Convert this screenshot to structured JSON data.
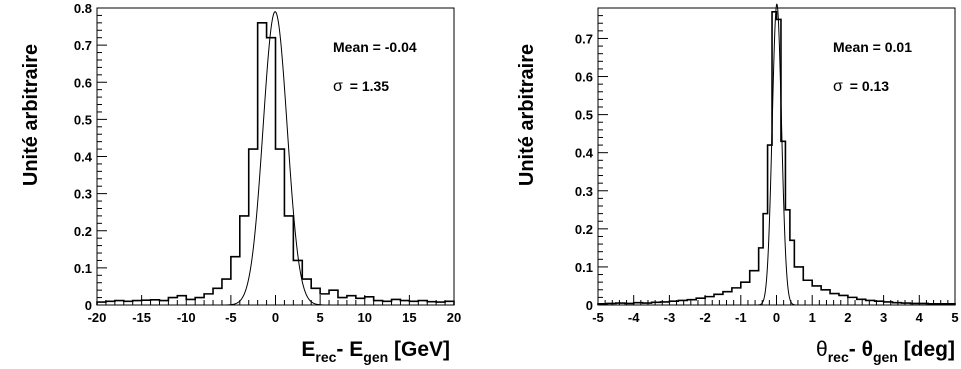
{
  "chart_data": [
    {
      "type": "histogram",
      "ylabel": "Unité arbitraire",
      "xlabel": {
        "main1": "E",
        "sub1": "rec",
        "mid": "- E",
        "sub2": "gen",
        "tail": " [GeV]"
      },
      "xlim": [
        -20,
        20
      ],
      "ylim": [
        0,
        0.8
      ],
      "xticks": [
        "-20",
        "-15",
        "-10",
        "-5",
        "0",
        "5",
        "10",
        "15",
        "20"
      ],
      "yticks": [
        "0",
        "0.1",
        "0.2",
        "0.3",
        "0.4",
        "0.5",
        "0.6",
        "0.7",
        "0.8"
      ],
      "stats": {
        "mean_text": "Mean = -0.04",
        "sigma_symbol": "σ",
        "sigma_text": "=  1.35"
      },
      "histogram": {
        "edges": [
          -20,
          -19,
          -18,
          -17,
          -16,
          -15,
          -14,
          -13,
          -12,
          -11,
          -10,
          -9,
          -8,
          -7,
          -6,
          -5,
          -4,
          -3,
          -2,
          -1,
          0,
          1,
          2,
          3,
          4,
          5,
          6,
          7,
          8,
          9,
          10,
          11,
          12,
          13,
          14,
          15,
          16,
          17,
          18,
          19,
          20
        ],
        "values": [
          0.008,
          0.01,
          0.012,
          0.01,
          0.012,
          0.013,
          0.014,
          0.012,
          0.02,
          0.025,
          0.015,
          0.02,
          0.03,
          0.045,
          0.07,
          0.13,
          0.24,
          0.42,
          0.76,
          0.72,
          0.42,
          0.24,
          0.12,
          0.07,
          0.045,
          0.03,
          0.04,
          0.02,
          0.025,
          0.018,
          0.022,
          0.012,
          0.01,
          0.015,
          0.012,
          0.01,
          0.012,
          0.009,
          0.008,
          0.01
        ]
      },
      "fit": {
        "peak": 0.79,
        "mean": -0.04,
        "sigma": 1.35
      }
    },
    {
      "type": "histogram",
      "ylabel": "Unité arbitraire",
      "xlabel": {
        "main1": "θ",
        "sub1": "rec",
        "mid": "- θ",
        "sub2": "gen",
        "tail": " [deg]"
      },
      "xlim": [
        -5,
        5
      ],
      "ylim": [
        0,
        0.78
      ],
      "xticks": [
        "-5",
        "-4",
        "-3",
        "-2",
        "-1",
        "0",
        "1",
        "2",
        "3",
        "4",
        "5"
      ],
      "yticks": [
        "0",
        "0.1",
        "0.2",
        "0.3",
        "0.4",
        "0.5",
        "0.6",
        "0.7"
      ],
      "stats": {
        "mean_text": "Mean =  0.01",
        "sigma_symbol": "σ",
        "sigma_text": "=  0.13"
      },
      "histogram": {
        "edges": [
          -5,
          -4.75,
          -4.5,
          -4.25,
          -4,
          -3.75,
          -3.5,
          -3.25,
          -3,
          -2.75,
          -2.5,
          -2.25,
          -2,
          -1.75,
          -1.5,
          -1.25,
          -1,
          -0.75,
          -0.5,
          -0.375,
          -0.25,
          -0.125,
          0,
          0.125,
          0.25,
          0.375,
          0.5,
          0.75,
          1,
          1.25,
          1.5,
          1.75,
          2,
          2.25,
          2.5,
          2.75,
          3,
          3.25,
          3.5,
          3.75,
          4,
          4.25,
          4.5,
          4.75,
          5
        ],
        "values": [
          0.003,
          0.004,
          0.005,
          0.004,
          0.006,
          0.005,
          0.007,
          0.008,
          0.01,
          0.012,
          0.014,
          0.018,
          0.022,
          0.028,
          0.035,
          0.045,
          0.06,
          0.09,
          0.15,
          0.24,
          0.42,
          0.77,
          0.75,
          0.43,
          0.25,
          0.17,
          0.1,
          0.065,
          0.05,
          0.04,
          0.03,
          0.025,
          0.02,
          0.015,
          0.012,
          0.01,
          0.008,
          0.006,
          0.005,
          0.004,
          0.004,
          0.003,
          0.003,
          0.003
        ]
      },
      "fit": {
        "peak": 0.79,
        "mean": 0.01,
        "sigma": 0.13
      }
    }
  ]
}
